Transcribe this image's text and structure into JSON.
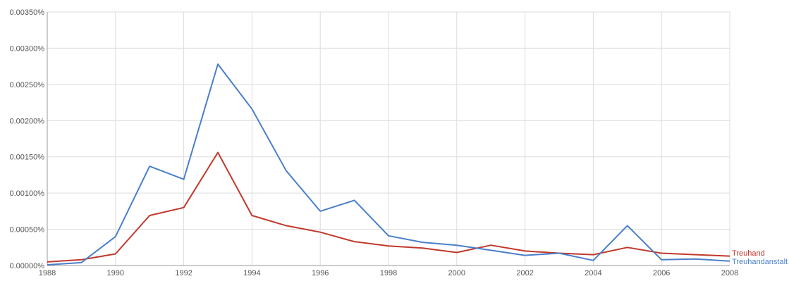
{
  "chart_data": {
    "type": "line",
    "x": [
      1988,
      1989,
      1990,
      1991,
      1992,
      1993,
      1994,
      1995,
      1996,
      1997,
      1998,
      1999,
      2000,
      2001,
      2002,
      2003,
      2004,
      2005,
      2006,
      2007,
      2008
    ],
    "x_ticks": [
      "1988",
      "1990",
      "1992",
      "1994",
      "1996",
      "1998",
      "2000",
      "2002",
      "2004",
      "2006",
      "2008"
    ],
    "y_ticks": [
      "0.00000%",
      "0.00050%",
      "0.00100%",
      "0.00150%",
      "0.00200%",
      "0.00250%",
      "0.00300%",
      "0.00350%"
    ],
    "xlim": [
      1988,
      2008
    ],
    "ylim": [
      0,
      0.0035
    ],
    "grid": true,
    "series": [
      {
        "name": "Treuhand",
        "color": "#c0392b",
        "values": [
          5e-05,
          8e-05,
          0.00016,
          0.00069,
          0.0008,
          0.00156,
          0.00069,
          0.00055,
          0.00046,
          0.00033,
          0.00027,
          0.00024,
          0.00018,
          0.00028,
          0.0002,
          0.00017,
          0.00015,
          0.00025,
          0.00017,
          0.00015,
          0.00013
        ]
      },
      {
        "name": "Treuhandanstalt",
        "color": "#4a7fc9",
        "values": [
          1e-05,
          4e-05,
          0.0004,
          0.00137,
          0.00119,
          0.00278,
          0.00216,
          0.00131,
          0.00075,
          0.0009,
          0.00041,
          0.00032,
          0.00028,
          0.00021,
          0.00014,
          0.00017,
          7e-05,
          0.00055,
          8e-05,
          9e-05,
          6e-05
        ]
      }
    ]
  }
}
